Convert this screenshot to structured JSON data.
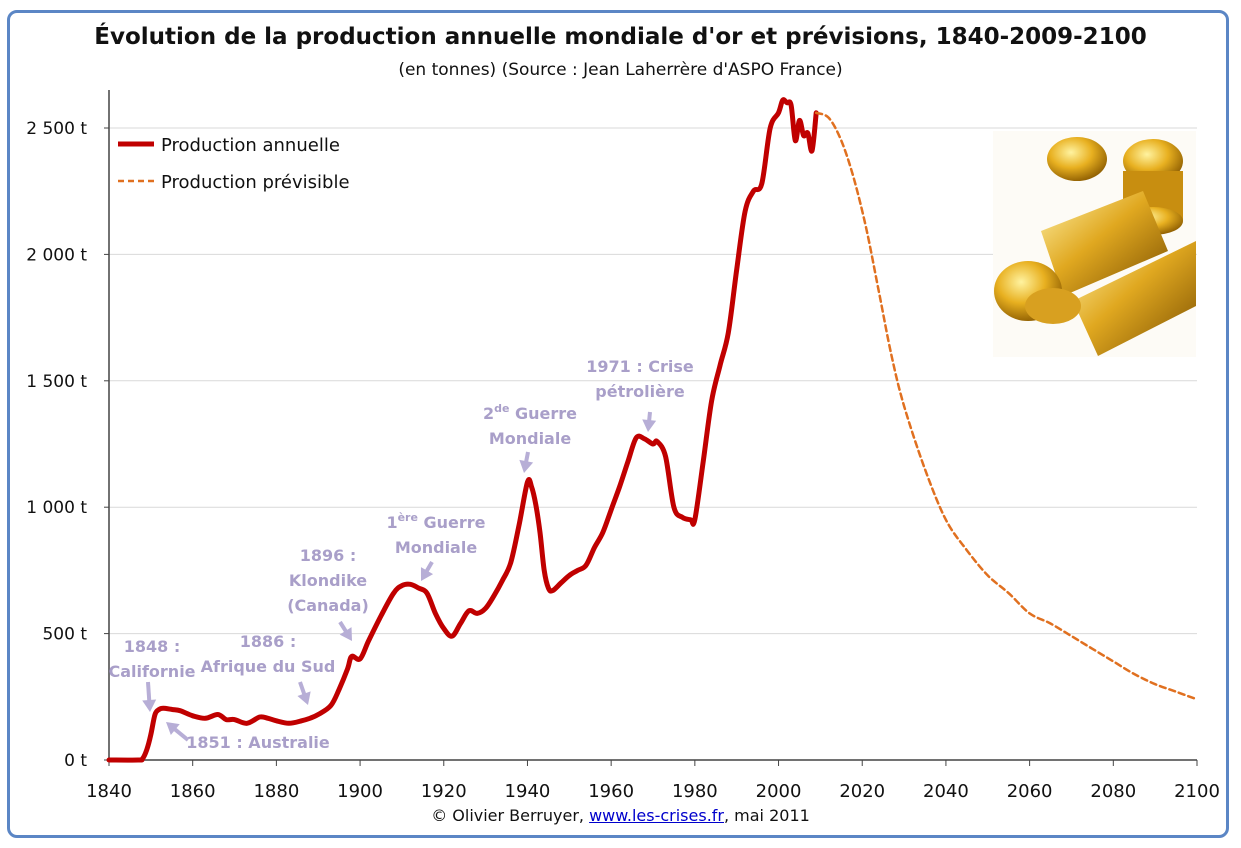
{
  "chart_data": {
    "type": "line",
    "title": "Évolution de la production annuelle mondiale d'or et prévisions, 1840-2009-2100",
    "subtitle": "(en tonnes) (Source : Jean Laherrère d'ASPO France)",
    "xlim": [
      1840,
      2100
    ],
    "ylim": [
      0,
      2600
    ],
    "x_ticks": [
      "1840",
      "1860",
      "1880",
      "1900",
      "1920",
      "1940",
      "1960",
      "1980",
      "2000",
      "2020",
      "2040",
      "2060",
      "2080",
      "2100"
    ],
    "y_ticks": [
      "0 t",
      "500 t",
      "1 000 t",
      "1 500 t",
      "2 000 t",
      "2 500 t"
    ],
    "y_tick_values": [
      0,
      500,
      1000,
      1500,
      2000,
      2500
    ],
    "grid": "horizontal",
    "legend_position": "top-left",
    "series": [
      {
        "name": "Production annuelle",
        "color": "#c00000",
        "style": "solid",
        "x": [
          1840,
          1847,
          1848,
          1849,
          1850,
          1851,
          1852,
          1853,
          1855,
          1857,
          1860,
          1863,
          1866,
          1868,
          1870,
          1873,
          1876,
          1878,
          1880,
          1883,
          1886,
          1888,
          1890,
          1893,
          1895,
          1897,
          1898,
          1900,
          1902,
          1905,
          1908,
          1910,
          1912,
          1914,
          1916,
          1918,
          1920,
          1922,
          1924,
          1926,
          1928,
          1930,
          1932,
          1934,
          1936,
          1938,
          1940,
          1941,
          1942,
          1943,
          1944,
          1945,
          1946,
          1948,
          1950,
          1952,
          1954,
          1956,
          1958,
          1960,
          1962,
          1964,
          1966,
          1968,
          1970,
          1971,
          1973,
          1975,
          1977,
          1979,
          1980,
          1982,
          1984,
          1986,
          1988,
          1990,
          1992,
          1994,
          1996,
          1998,
          2000,
          2001,
          2002,
          2003,
          2004,
          2005,
          2006,
          2007,
          2008,
          2009
        ],
        "y": [
          0,
          0,
          5,
          40,
          100,
          180,
          200,
          205,
          200,
          195,
          175,
          165,
          180,
          160,
          160,
          145,
          170,
          165,
          155,
          145,
          155,
          165,
          180,
          215,
          280,
          360,
          410,
          400,
          470,
          570,
          660,
          690,
          695,
          680,
          660,
          580,
          520,
          490,
          540,
          590,
          580,
          600,
          650,
          710,
          780,
          930,
          1100,
          1080,
          1010,
          900,
          750,
          680,
          670,
          700,
          730,
          750,
          770,
          840,
          900,
          990,
          1080,
          1180,
          1275,
          1270,
          1250,
          1260,
          1200,
          1000,
          960,
          950,
          950,
          1180,
          1420,
          1560,
          1690,
          1940,
          2170,
          2250,
          2280,
          2500,
          2560,
          2610,
          2600,
          2590,
          2450,
          2530,
          2470,
          2480,
          2410,
          2560
        ]
      },
      {
        "name": "Production prévisible",
        "color": "#e07020",
        "style": "dashed",
        "x": [
          2009,
          2012,
          2015,
          2018,
          2021,
          2024,
          2027,
          2030,
          2035,
          2040,
          2045,
          2050,
          2055,
          2060,
          2065,
          2070,
          2075,
          2080,
          2085,
          2090,
          2095,
          2100
        ],
        "y": [
          2560,
          2540,
          2450,
          2300,
          2100,
          1850,
          1600,
          1400,
          1150,
          950,
          830,
          730,
          660,
          580,
          540,
          490,
          440,
          390,
          340,
          300,
          270,
          240
        ]
      }
    ],
    "annotations": [
      {
        "lines": [
          "1848 :",
          "Californie"
        ],
        "x": 1848
      },
      {
        "lines": [
          "1851 : Australie"
        ],
        "x": 1851
      },
      {
        "lines": [
          "1886 :",
          "Afrique du Sud"
        ],
        "x": 1886
      },
      {
        "lines": [
          "1896 :",
          "Klondike",
          "(Canada)"
        ],
        "x": 1896
      },
      {
        "lines": [
          "1ère Guerre",
          "Mondiale"
        ],
        "x": 1914
      },
      {
        "lines": [
          "2de Guerre",
          "Mondiale"
        ],
        "x": 1940
      },
      {
        "lines": [
          "1971 : Crise",
          "pétrolière"
        ],
        "x": 1971
      }
    ]
  },
  "footer": {
    "copyright": "© Olivier Berruyer, ",
    "link": "www.les-crises.fr",
    "date": ", mai 2011"
  },
  "photo": {
    "description_icon": "gold-bars-coins-photo"
  }
}
